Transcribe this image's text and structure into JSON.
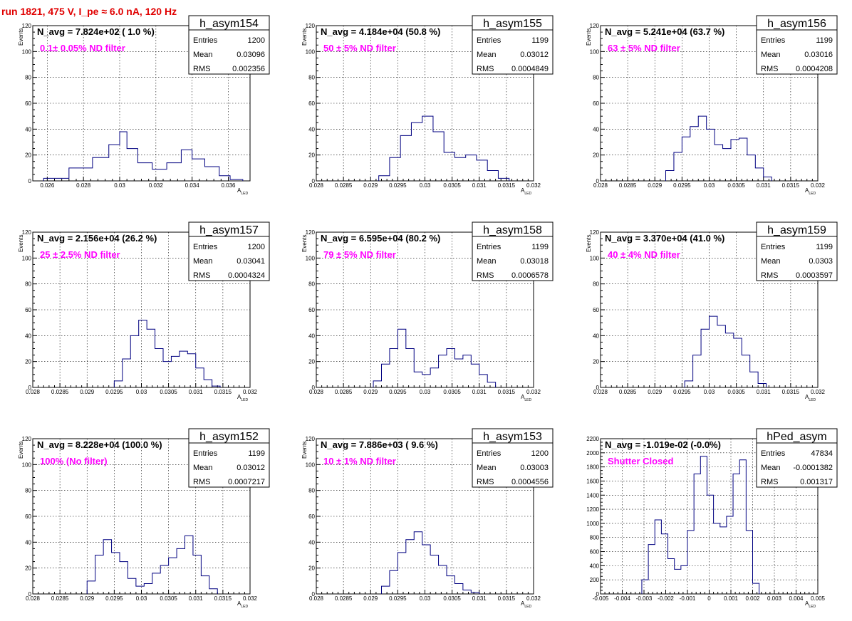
{
  "run_title": "run 1821,   475 V, I_pe ≈ 6.0 nA, 120 Hz",
  "stats_labels": {
    "entries": "Entries",
    "mean": "Mean",
    "rms": "RMS"
  },
  "chart_data": [
    {
      "type": "bar",
      "name": "h_asym154",
      "navg": "N_avg = 7.824e+02 ( 1.0 %)",
      "note": "0.1± 0.05% ND filter",
      "entries": "1200",
      "mean": "0.03096",
      "rms": "0.002356",
      "xlabel": "A",
      "xlabel_sub": "LED",
      "ylabel": "Events",
      "xlim": [
        0.0252,
        0.0372
      ],
      "ylim": [
        0,
        120
      ],
      "xticks": [
        0.026,
        0.028,
        0.03,
        0.032,
        0.034,
        0.036
      ],
      "xtick_labels": [
        "0.026",
        "0.028",
        "0.03",
        "0.032",
        "0.034",
        "0.036"
      ],
      "yticks": [
        0,
        20,
        40,
        60,
        80,
        100,
        120
      ],
      "bins": [
        [
          0.0258,
          0.0272,
          2
        ],
        [
          0.0272,
          0.0285,
          10
        ],
        [
          0.0285,
          0.0294,
          18
        ],
        [
          0.0294,
          0.03,
          28
        ],
        [
          0.03,
          0.0304,
          38
        ],
        [
          0.0304,
          0.031,
          25
        ],
        [
          0.031,
          0.0318,
          14
        ],
        [
          0.0318,
          0.0326,
          9
        ],
        [
          0.0326,
          0.0334,
          14
        ],
        [
          0.0334,
          0.034,
          24
        ],
        [
          0.034,
          0.0347,
          17
        ],
        [
          0.0347,
          0.0355,
          11
        ],
        [
          0.0355,
          0.0361,
          4
        ],
        [
          0.0361,
          0.0368,
          1
        ]
      ]
    },
    {
      "type": "bar",
      "name": "h_asym155",
      "navg": "N_avg = 4.184e+04 (50.8 %)",
      "note": "50 ± 5% ND filter",
      "entries": "1199",
      "mean": "0.03012",
      "rms": "0.0004849",
      "xlabel": "A",
      "xlabel_sub": "LED",
      "ylabel": "Events",
      "xlim": [
        0.028,
        0.032
      ],
      "ylim": [
        0,
        120
      ],
      "xticks": [
        0.028,
        0.0285,
        0.029,
        0.0295,
        0.03,
        0.0305,
        0.031,
        0.0315,
        0.032
      ],
      "xtick_labels": [
        "0.028",
        "0.0285",
        "0.029",
        "0.0295",
        "0.03",
        "0.0305",
        "0.031",
        "0.0315",
        "0.032"
      ],
      "yticks": [
        0,
        20,
        40,
        60,
        80,
        100,
        120
      ],
      "bins": [
        [
          0.02915,
          0.02935,
          4
        ],
        [
          0.02935,
          0.02955,
          18
        ],
        [
          0.02955,
          0.02975,
          35
        ],
        [
          0.02975,
          0.02995,
          45
        ],
        [
          0.02995,
          0.03015,
          50
        ],
        [
          0.03015,
          0.03035,
          38
        ],
        [
          0.03035,
          0.03055,
          22
        ],
        [
          0.03055,
          0.03075,
          18
        ],
        [
          0.03075,
          0.03095,
          20
        ],
        [
          0.03095,
          0.03115,
          16
        ],
        [
          0.03115,
          0.03135,
          8
        ],
        [
          0.03135,
          0.03155,
          2
        ]
      ]
    },
    {
      "type": "bar",
      "name": "h_asym156",
      "navg": "N_avg = 5.241e+04 (63.7 %)",
      "note": "63 ± 5% ND filter",
      "entries": "1199",
      "mean": "0.03016",
      "rms": "0.0004208",
      "xlabel": "A",
      "xlabel_sub": "LED",
      "ylabel": "Events",
      "xlim": [
        0.028,
        0.032
      ],
      "ylim": [
        0,
        120
      ],
      "xticks": [
        0.028,
        0.0285,
        0.029,
        0.0295,
        0.03,
        0.0305,
        0.031,
        0.0315,
        0.032
      ],
      "xtick_labels": [
        "0.028",
        "0.0285",
        "0.029",
        "0.0295",
        "0.03",
        "0.0305",
        "0.031",
        "0.0315",
        "0.032"
      ],
      "yticks": [
        0,
        20,
        40,
        60,
        80,
        100,
        120
      ],
      "bins": [
        [
          0.0292,
          0.02935,
          8
        ],
        [
          0.02935,
          0.0295,
          22
        ],
        [
          0.0295,
          0.02965,
          34
        ],
        [
          0.02965,
          0.0298,
          42
        ],
        [
          0.0298,
          0.02995,
          50
        ],
        [
          0.02995,
          0.0301,
          40
        ],
        [
          0.0301,
          0.03025,
          28
        ],
        [
          0.03025,
          0.0304,
          25
        ],
        [
          0.0304,
          0.03055,
          32
        ],
        [
          0.03055,
          0.0307,
          33
        ],
        [
          0.0307,
          0.03085,
          20
        ],
        [
          0.03085,
          0.031,
          10
        ],
        [
          0.031,
          0.03115,
          3
        ]
      ]
    },
    {
      "type": "bar",
      "name": "h_asym157",
      "navg": "N_avg = 2.156e+04 (26.2 %)",
      "note": "25 ± 2.5% ND filter",
      "entries": "1200",
      "mean": "0.03041",
      "rms": "0.0004324",
      "xlabel": "A",
      "xlabel_sub": "LED",
      "ylabel": "Events",
      "xlim": [
        0.028,
        0.032
      ],
      "ylim": [
        0,
        120
      ],
      "xticks": [
        0.028,
        0.0285,
        0.029,
        0.0295,
        0.03,
        0.0305,
        0.031,
        0.0315,
        0.032
      ],
      "xtick_labels": [
        "0.028",
        "0.0285",
        "0.029",
        "0.0295",
        "0.03",
        "0.0305",
        "0.031",
        "0.0315",
        "0.032"
      ],
      "yticks": [
        0,
        20,
        40,
        60,
        80,
        100,
        120
      ],
      "bins": [
        [
          0.0295,
          0.02965,
          5
        ],
        [
          0.02965,
          0.0298,
          22
        ],
        [
          0.0298,
          0.02995,
          40
        ],
        [
          0.02995,
          0.0301,
          52
        ],
        [
          0.0301,
          0.03025,
          45
        ],
        [
          0.03025,
          0.0304,
          30
        ],
        [
          0.0304,
          0.03055,
          20
        ],
        [
          0.03055,
          0.0307,
          24
        ],
        [
          0.0307,
          0.03085,
          28
        ],
        [
          0.03085,
          0.031,
          26
        ],
        [
          0.031,
          0.03115,
          15
        ],
        [
          0.03115,
          0.0313,
          6
        ],
        [
          0.0313,
          0.03145,
          1
        ]
      ]
    },
    {
      "type": "bar",
      "name": "h_asym158",
      "navg": "N_avg = 6.595e+04 (80.2 %)",
      "note": "79 ± 5% ND filter",
      "entries": "1199",
      "mean": "0.03018",
      "rms": "0.0006578",
      "xlabel": "A",
      "xlabel_sub": "LED",
      "ylabel": "Events",
      "xlim": [
        0.028,
        0.032
      ],
      "ylim": [
        0,
        120
      ],
      "xticks": [
        0.028,
        0.0285,
        0.029,
        0.0295,
        0.03,
        0.0305,
        0.031,
        0.0315,
        0.032
      ],
      "xtick_labels": [
        "0.028",
        "0.0285",
        "0.029",
        "0.0295",
        "0.03",
        "0.0305",
        "0.031",
        "0.0315",
        "0.032"
      ],
      "yticks": [
        0,
        20,
        40,
        60,
        80,
        100,
        120
      ],
      "bins": [
        [
          0.02905,
          0.0292,
          5
        ],
        [
          0.0292,
          0.02935,
          18
        ],
        [
          0.02935,
          0.0295,
          30
        ],
        [
          0.0295,
          0.02965,
          45
        ],
        [
          0.02965,
          0.0298,
          30
        ],
        [
          0.0298,
          0.02995,
          12
        ],
        [
          0.02995,
          0.0301,
          10
        ],
        [
          0.0301,
          0.03025,
          15
        ],
        [
          0.03025,
          0.0304,
          25
        ],
        [
          0.0304,
          0.03055,
          30
        ],
        [
          0.03055,
          0.0307,
          22
        ],
        [
          0.0307,
          0.03085,
          25
        ],
        [
          0.03085,
          0.031,
          18
        ],
        [
          0.031,
          0.03115,
          10
        ],
        [
          0.03115,
          0.0313,
          4
        ]
      ]
    },
    {
      "type": "bar",
      "name": "h_asym159",
      "navg": "N_avg = 3.370e+04 (41.0 %)",
      "note": "40 ± 4% ND filter",
      "entries": "1199",
      "mean": "0.0303",
      "rms": "0.0003597",
      "xlabel": "A",
      "xlabel_sub": "LED",
      "ylabel": "Events",
      "xlim": [
        0.028,
        0.032
      ],
      "ylim": [
        0,
        120
      ],
      "xticks": [
        0.028,
        0.0285,
        0.029,
        0.0295,
        0.03,
        0.0305,
        0.031,
        0.0315,
        0.032
      ],
      "xtick_labels": [
        "0.028",
        "0.0285",
        "0.029",
        "0.0295",
        "0.03",
        "0.0305",
        "0.031",
        "0.0315",
        "0.032"
      ],
      "yticks": [
        0,
        20,
        40,
        60,
        80,
        100,
        120
      ],
      "bins": [
        [
          0.02955,
          0.0297,
          5
        ],
        [
          0.0297,
          0.02985,
          25
        ],
        [
          0.02985,
          0.03,
          45
        ],
        [
          0.03,
          0.03015,
          55
        ],
        [
          0.03015,
          0.0303,
          48
        ],
        [
          0.0303,
          0.03045,
          42
        ],
        [
          0.03045,
          0.0306,
          38
        ],
        [
          0.0306,
          0.03075,
          25
        ],
        [
          0.03075,
          0.0309,
          12
        ],
        [
          0.0309,
          0.03105,
          3
        ]
      ]
    },
    {
      "type": "bar",
      "name": "h_asym152",
      "navg": "N_avg = 8.228e+04 (100.0 %)",
      "note": "100% (No filter)",
      "entries": "1199",
      "mean": "0.03012",
      "rms": "0.0007217",
      "xlabel": "A",
      "xlabel_sub": "LED",
      "ylabel": "Events",
      "xlim": [
        0.028,
        0.032
      ],
      "ylim": [
        0,
        120
      ],
      "xticks": [
        0.028,
        0.0285,
        0.029,
        0.0295,
        0.03,
        0.0305,
        0.031,
        0.0315,
        0.032
      ],
      "xtick_labels": [
        "0.028",
        "0.0285",
        "0.029",
        "0.0295",
        "0.03",
        "0.0305",
        "0.031",
        "0.0315",
        "0.032"
      ],
      "yticks": [
        0,
        20,
        40,
        60,
        80,
        100,
        120
      ],
      "bins": [
        [
          0.029,
          0.02915,
          10
        ],
        [
          0.02915,
          0.0293,
          30
        ],
        [
          0.0293,
          0.02945,
          42
        ],
        [
          0.02945,
          0.0296,
          32
        ],
        [
          0.0296,
          0.02975,
          25
        ],
        [
          0.02975,
          0.0299,
          12
        ],
        [
          0.0299,
          0.03005,
          6
        ],
        [
          0.03005,
          0.0302,
          8
        ],
        [
          0.0302,
          0.03035,
          16
        ],
        [
          0.03035,
          0.0305,
          22
        ],
        [
          0.0305,
          0.03065,
          28
        ],
        [
          0.03065,
          0.0308,
          35
        ],
        [
          0.0308,
          0.03095,
          45
        ],
        [
          0.03095,
          0.0311,
          30
        ],
        [
          0.0311,
          0.03125,
          14
        ],
        [
          0.03125,
          0.0314,
          4
        ]
      ]
    },
    {
      "type": "bar",
      "name": "h_asym153",
      "navg": "N_avg = 7.886e+03 ( 9.6 %)",
      "note": "10 ± 1% ND filter",
      "entries": "1200",
      "mean": "0.03003",
      "rms": "0.0004556",
      "xlabel": "A",
      "xlabel_sub": "LED",
      "ylabel": "Events",
      "xlim": [
        0.028,
        0.032
      ],
      "ylim": [
        0,
        120
      ],
      "xticks": [
        0.028,
        0.0285,
        0.029,
        0.0295,
        0.03,
        0.0305,
        0.031,
        0.0315,
        0.032
      ],
      "xtick_labels": [
        "0.028",
        "0.0285",
        "0.029",
        "0.0295",
        "0.03",
        "0.0305",
        "0.031",
        "0.0315",
        "0.032"
      ],
      "yticks": [
        0,
        20,
        40,
        60,
        80,
        100,
        120
      ],
      "bins": [
        [
          0.0292,
          0.02935,
          6
        ],
        [
          0.02935,
          0.0295,
          18
        ],
        [
          0.0295,
          0.02965,
          32
        ],
        [
          0.02965,
          0.0298,
          42
        ],
        [
          0.0298,
          0.02995,
          48
        ],
        [
          0.02995,
          0.0301,
          38
        ],
        [
          0.0301,
          0.03025,
          30
        ],
        [
          0.03025,
          0.0304,
          22
        ],
        [
          0.0304,
          0.03055,
          14
        ],
        [
          0.03055,
          0.0307,
          8
        ],
        [
          0.0307,
          0.03085,
          3
        ],
        [
          0.03085,
          0.031,
          1
        ]
      ]
    },
    {
      "type": "bar",
      "name": "hPed_asym",
      "navg": "N_avg = -1.019e-02 (-0.0%)",
      "note": "Shutter Closed",
      "entries": "47834",
      "mean": "-0.0001382",
      "rms": "0.001317",
      "xlabel": "A",
      "xlabel_sub": "LED",
      "ylabel": "",
      "xlim": [
        -0.005,
        0.005
      ],
      "ylim": [
        0,
        2200
      ],
      "xticks": [
        -0.005,
        -0.004,
        -0.003,
        -0.002,
        -0.001,
        0,
        0.001,
        0.002,
        0.003,
        0.004,
        0.005
      ],
      "xtick_labels": [
        "-0.005",
        "-0.004",
        "-0.003",
        "-0.002",
        "-0.001",
        "0",
        "0.001",
        "0.002",
        "0.003",
        "0.004",
        "0.005"
      ],
      "yticks": [
        0,
        200,
        400,
        600,
        800,
        1000,
        1200,
        1400,
        1600,
        1800,
        2000,
        2200
      ],
      "bins": [
        [
          -0.0031,
          -0.0028,
          200
        ],
        [
          -0.0028,
          -0.0025,
          700
        ],
        [
          -0.0025,
          -0.0022,
          1050
        ],
        [
          -0.0022,
          -0.0019,
          850
        ],
        [
          -0.0019,
          -0.0016,
          500
        ],
        [
          -0.0016,
          -0.0013,
          350
        ],
        [
          -0.0013,
          -0.001,
          400
        ],
        [
          -0.001,
          -0.0007,
          900
        ],
        [
          -0.0007,
          -0.0004,
          1700
        ],
        [
          -0.0004,
          -0.0001,
          1950
        ],
        [
          -0.0001,
          0.0002,
          1400
        ],
        [
          0.0002,
          0.0005,
          1000
        ],
        [
          0.0005,
          0.0008,
          950
        ],
        [
          0.0008,
          0.0011,
          1100
        ],
        [
          0.0011,
          0.0014,
          1700
        ],
        [
          0.0014,
          0.0017,
          1900
        ],
        [
          0.0017,
          0.002,
          900
        ],
        [
          0.002,
          0.0023,
          150
        ]
      ]
    }
  ]
}
